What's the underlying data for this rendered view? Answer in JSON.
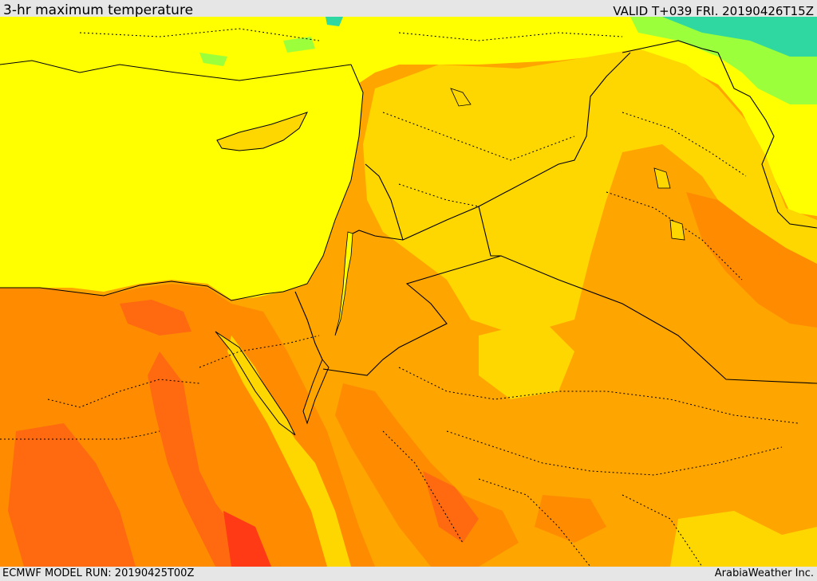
{
  "header": {
    "title": "3-hr maximum temperature",
    "valid": "VALID T+039 FRI. 20190426T15Z"
  },
  "footer": {
    "model_run": "ECMWF MODEL RUN: 20190425T00Z",
    "credit": "ArabiaWeather Inc."
  },
  "map": {
    "region": "Eastern Mediterranean, Levant, Egypt, Iraq, northern Arabia",
    "colors": {
      "sea_yellow": "#ffff00",
      "warm_gold": "#ffd700",
      "amber": "#ffa500",
      "orange": "#ff8c00",
      "deep_orange": "#ff6a10",
      "hot_red": "#ff3a14",
      "green": "#9cff3c",
      "teal": "#2ed8a0",
      "border_line": "#000000"
    }
  }
}
